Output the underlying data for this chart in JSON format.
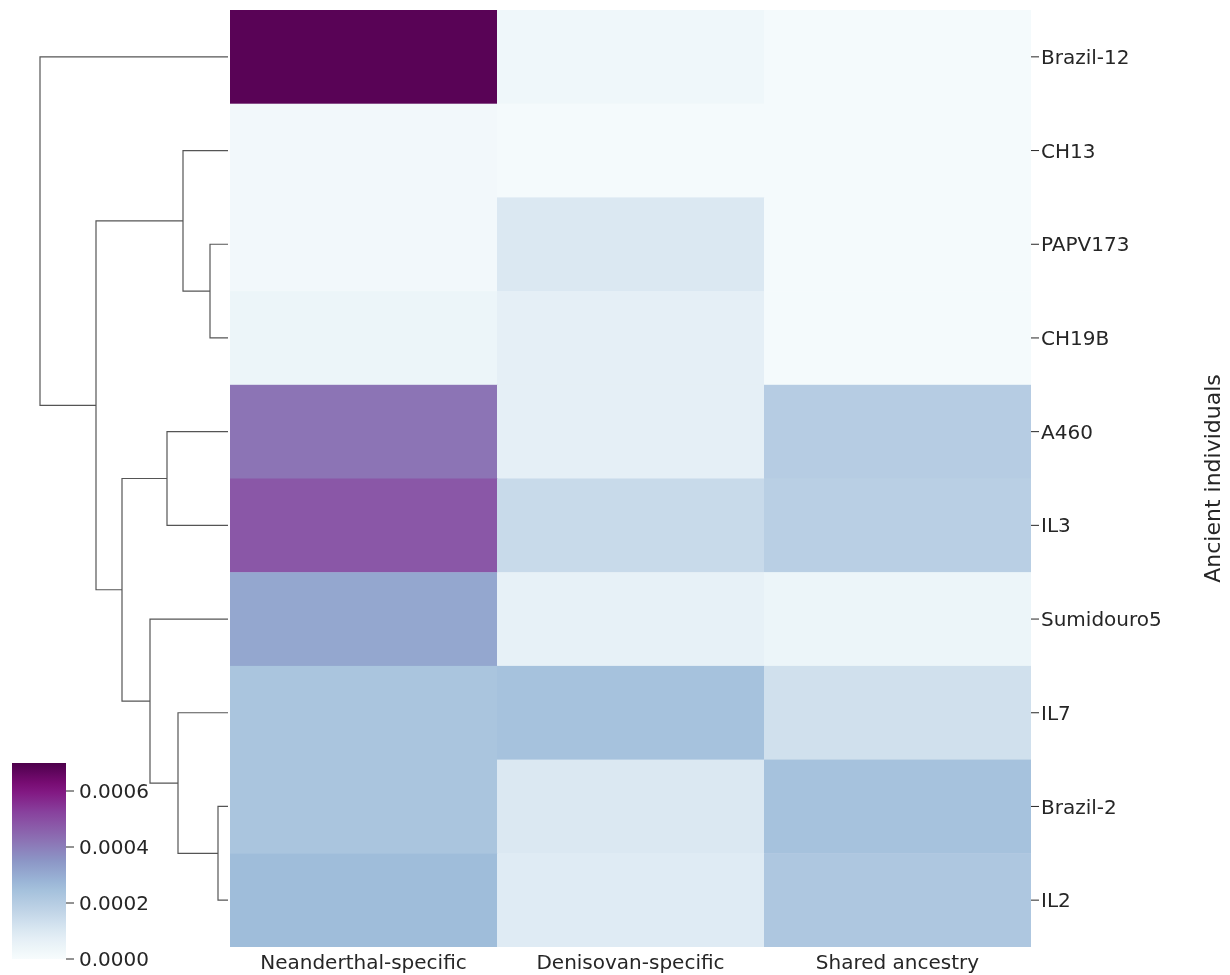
{
  "chart_data": {
    "type": "heatmap",
    "ylabel": "Ancient individuals",
    "categories": [
      "Neanderthal-specific",
      "Denisovan-specific",
      "Shared ancestry"
    ],
    "y_categories": [
      "Brazil-12",
      "CH13",
      "PAPV173",
      "CH19B",
      "A460",
      "IL3",
      "Sumidouro5",
      "IL7",
      "Brazil-2",
      "IL2"
    ],
    "cells": [
      [
        0.00068,
        3e-05,
        1e-05
      ],
      [
        2e-05,
        1e-05,
        1e-05
      ],
      [
        2e-05,
        0.0001,
        1e-05
      ],
      [
        4e-05,
        7e-05,
        1e-05
      ],
      [
        0.00042,
        7e-05,
        0.0002
      ],
      [
        0.00048,
        0.00015,
        0.00019
      ],
      [
        0.00031,
        6e-05,
        4e-05
      ],
      [
        0.00023,
        0.00024,
        0.00013
      ],
      [
        0.00023,
        0.0001,
        0.00024
      ],
      [
        0.00026,
        9e-05,
        0.00022
      ]
    ],
    "clim": [
      0,
      0.0007
    ],
    "cticks": [
      {
        "value": 0,
        "label": "0.0000"
      },
      0.0002,
      0.0004,
      0.0006
    ]
  }
}
